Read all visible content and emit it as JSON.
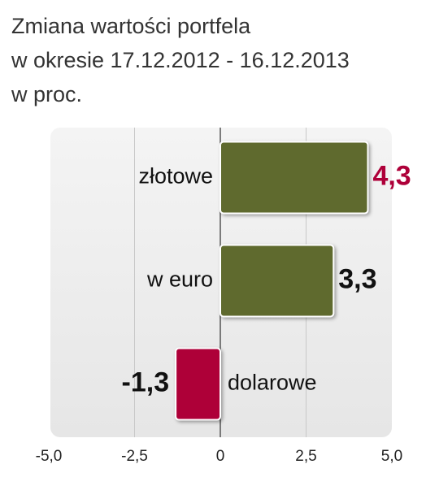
{
  "chart_data": {
    "type": "bar",
    "orientation": "horizontal",
    "title": [
      "Zmiana wartości portfela",
      "w okresie 17.12.2012 - 16.12.2013",
      "w proc."
    ],
    "categories": [
      "złotowe",
      "w euro",
      "dolarowe"
    ],
    "values": [
      4.3,
      3.3,
      -1.3
    ],
    "value_labels": [
      "4,3",
      "3,3",
      "-1,3"
    ],
    "colors": [
      "#5e6a2d",
      "#5e6a2d",
      "#ae0039"
    ],
    "value_label_colors": [
      "#ae0039",
      "#111111",
      "#111111"
    ],
    "xlim": [
      -5,
      5
    ],
    "xticks": [
      {
        "value": -5,
        "label": "-5,0"
      },
      {
        "value": -2.5,
        "label": "-2,5"
      },
      0,
      {
        "value": 2.5,
        "label": "2,5"
      },
      {
        "value": 5,
        "label": "5,0"
      }
    ],
    "grid": true
  }
}
